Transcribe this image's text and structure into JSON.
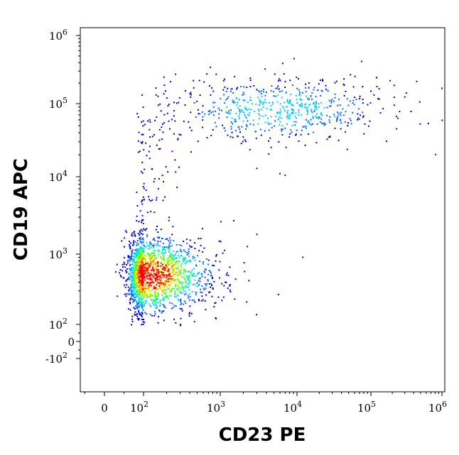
{
  "chart_data": {
    "type": "scatter",
    "subtype": "flow-cytometry density dot plot",
    "title": "",
    "xlabel": "CD23 PE",
    "ylabel": "CD19 APC",
    "x_scale": "biexponential (logicle)",
    "y_scale": "biexponential (logicle)",
    "xlim": [
      -200,
      1000000
    ],
    "ylim": [
      -500,
      1000000
    ],
    "x_ticks": [
      {
        "base": "0",
        "exp": "",
        "value": 0
      },
      {
        "base": "10",
        "exp": "2",
        "value": 100
      },
      {
        "base": "10",
        "exp": "3",
        "value": 1000
      },
      {
        "base": "10",
        "exp": "4",
        "value": 10000
      },
      {
        "base": "10",
        "exp": "5",
        "value": 100000
      },
      {
        "base": "10",
        "exp": "6",
        "value": 1000000
      }
    ],
    "y_ticks": [
      {
        "base": "10",
        "exp": "6",
        "value": 1000000
      },
      {
        "base": "10",
        "exp": "5",
        "value": 100000
      },
      {
        "base": "10",
        "exp": "4",
        "value": 10000
      },
      {
        "base": "10",
        "exp": "3",
        "value": 1000
      },
      {
        "base": "10",
        "exp": "2",
        "value": 100
      },
      {
        "base": "0",
        "exp": "",
        "value": 0
      },
      {
        "base": "-10",
        "exp": "2",
        "value": -100
      }
    ],
    "grid": false,
    "legend": "none",
    "density_colormap": [
      "#0000cc",
      "#0066ff",
      "#00ccff",
      "#00ff99",
      "#66ff00",
      "#ffff00",
      "#ff9900",
      "#ff0000"
    ],
    "populations": [
      {
        "description": "CD23- CD19+ low",
        "center": {
          "x": 110,
          "y": 500
        },
        "x_range": [
          40,
          300
        ],
        "y_range": [
          100,
          1200
        ],
        "relative_count": 0.72,
        "peak_density_color": "#ff0000"
      },
      {
        "description": "CD23+ CD19 high",
        "center": {
          "x": 6000,
          "y": 85000
        },
        "x_range": [
          100,
          100000
        ],
        "y_range": [
          30000,
          250000
        ],
        "relative_count": 0.24,
        "peak_density_color": "#00ccff"
      },
      {
        "description": "transition stream",
        "center": {
          "x": 110,
          "y": 5000
        },
        "x_range": [
          70,
          250
        ],
        "y_range": [
          1200,
          60000
        ],
        "relative_count": 0.04,
        "peak_density_color": "#0000cc"
      }
    ],
    "outliers": [
      {
        "x": 120000,
        "y": 240000
      },
      {
        "x": 1500,
        "y": 2700
      },
      {
        "x": 3000,
        "y": 1800
      },
      {
        "x": 12000,
        "y": 900
      },
      {
        "x": 3000,
        "y": 13000
      },
      {
        "x": 6000,
        "y": 11000
      },
      {
        "x": 7000,
        "y": 10500
      }
    ]
  }
}
